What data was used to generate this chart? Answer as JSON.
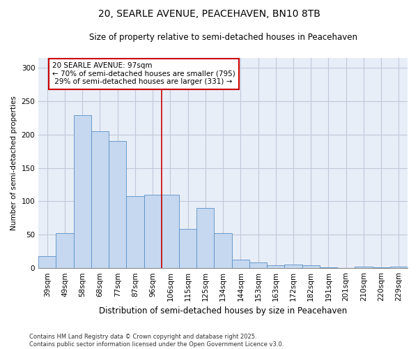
{
  "title": "20, SEARLE AVENUE, PEACEHAVEN, BN10 8TB",
  "subtitle": "Size of property relative to semi-detached houses in Peacehaven",
  "xlabel": "Distribution of semi-detached houses by size in Peacehaven",
  "ylabel": "Number of semi-detached properties",
  "categories": [
    "39sqm",
    "49sqm",
    "58sqm",
    "68sqm",
    "77sqm",
    "87sqm",
    "96sqm",
    "106sqm",
    "115sqm",
    "125sqm",
    "134sqm",
    "144sqm",
    "153sqm",
    "163sqm",
    "172sqm",
    "182sqm",
    "191sqm",
    "201sqm",
    "210sqm",
    "220sqm",
    "229sqm"
  ],
  "values": [
    18,
    52,
    229,
    205,
    190,
    108,
    110,
    110,
    59,
    90,
    52,
    13,
    9,
    4,
    5,
    4,
    1,
    0,
    2,
    1,
    2
  ],
  "bar_color": "#c5d8f0",
  "bar_edge_color": "#5a8fc4",
  "property_label": "20 SEARLE AVENUE: 97sqm",
  "pct_smaller": 70,
  "n_smaller": 795,
  "pct_larger": 29,
  "n_larger": 331,
  "vline_color": "#cc0000",
  "annotation_box_color": "#cc0000",
  "background_color": "#e8eef8",
  "grid_color": "#c0c8d8",
  "ylim": [
    0,
    315
  ],
  "yticks": [
    0,
    50,
    100,
    150,
    200,
    250,
    300
  ],
  "footer": "Contains HM Land Registry data © Crown copyright and database right 2025.\nContains public sector information licensed under the Open Government Licence v3.0.",
  "title_fontsize": 10,
  "subtitle_fontsize": 8.5,
  "xlabel_fontsize": 8.5,
  "ylabel_fontsize": 7.5,
  "tick_fontsize": 7.5,
  "footer_fontsize": 6.0,
  "annotation_fontsize": 7.5,
  "vline_x_index": 6
}
